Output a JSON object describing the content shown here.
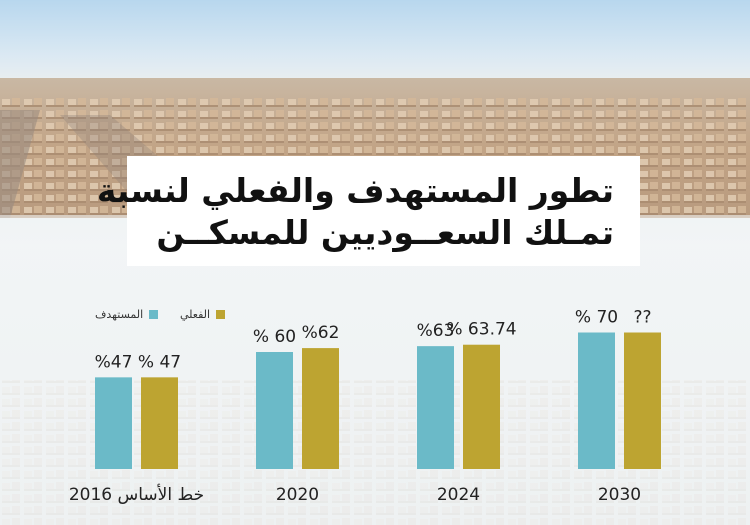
{
  "title": {
    "line1": "تطور المستهدف والفعلي لنسبة",
    "line2": "تمـلك السعــوديين للمسكــن"
  },
  "legend": {
    "target_label": "المستهدف",
    "actual_label": "الفعلي"
  },
  "colors": {
    "target": "#6bbac8",
    "actual": "#bda431"
  },
  "chart_data": {
    "type": "bar",
    "categories": [
      "2016 خط الأساس",
      "2020",
      "2024",
      "2030"
    ],
    "series": [
      {
        "name": "المستهدف",
        "values": [
          47,
          60,
          63,
          70
        ],
        "labels": [
          "%47",
          "% 60",
          "%63",
          "% 70"
        ]
      },
      {
        "name": "الفعلي",
        "values": [
          47,
          62,
          63.74,
          null
        ],
        "labels": [
          "% 47",
          "%62",
          "% 63.74",
          "??"
        ]
      }
    ],
    "legend_position": "top-left"
  }
}
